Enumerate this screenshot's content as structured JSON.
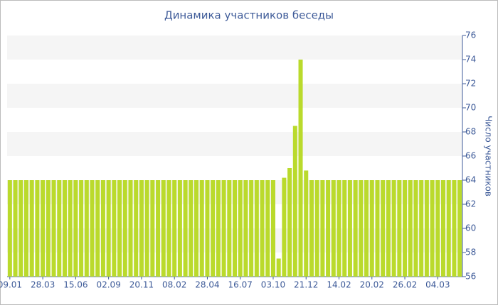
{
  "chart_data": {
    "type": "bar",
    "title": "Динамика участников беседы",
    "y_label": "Число участников",
    "categories": [
      "09.01",
      null,
      null,
      null,
      null,
      null,
      "28.03",
      null,
      null,
      null,
      null,
      null,
      "15.06",
      null,
      null,
      null,
      null,
      null,
      "02.09",
      null,
      null,
      null,
      null,
      null,
      "20.11",
      null,
      null,
      null,
      null,
      null,
      "08.02",
      null,
      null,
      null,
      null,
      null,
      "28.04",
      null,
      null,
      null,
      null,
      null,
      "16.07",
      null,
      null,
      null,
      null,
      null,
      "03.10",
      null,
      null,
      null,
      null,
      null,
      "21.12",
      null,
      null,
      null,
      null,
      null,
      "14.02",
      null,
      null,
      null,
      null,
      null,
      "20.02",
      null,
      null,
      null,
      null,
      null,
      "26.02",
      null,
      null,
      null,
      null,
      null,
      "04.03",
      null,
      null,
      null,
      null
    ],
    "values": [
      64,
      64,
      64,
      64,
      64,
      64,
      64,
      64,
      64,
      64,
      64,
      64,
      64,
      64,
      64,
      64,
      64,
      64,
      64,
      64,
      64,
      64,
      64,
      64,
      64,
      64,
      64,
      64,
      64,
      64,
      64,
      64,
      64,
      64,
      64,
      64,
      64,
      64,
      64,
      64,
      64,
      64,
      64,
      64,
      64,
      64,
      64,
      64,
      64,
      57.5,
      64.2,
      65,
      68.5,
      74,
      64.8,
      64,
      64,
      64,
      64,
      64,
      64,
      64,
      64,
      64,
      64,
      64,
      64,
      64,
      64,
      64,
      64,
      64,
      64,
      64,
      64,
      64,
      64,
      64,
      64,
      64,
      64,
      64,
      64
    ],
    "color": "#bada2c",
    "ylim": [
      56,
      76
    ],
    "yticks": [
      56,
      58,
      60,
      62,
      64,
      66,
      68,
      70,
      72,
      74,
      76
    ],
    "y_axis_side": "right",
    "grid_bands": true
  }
}
